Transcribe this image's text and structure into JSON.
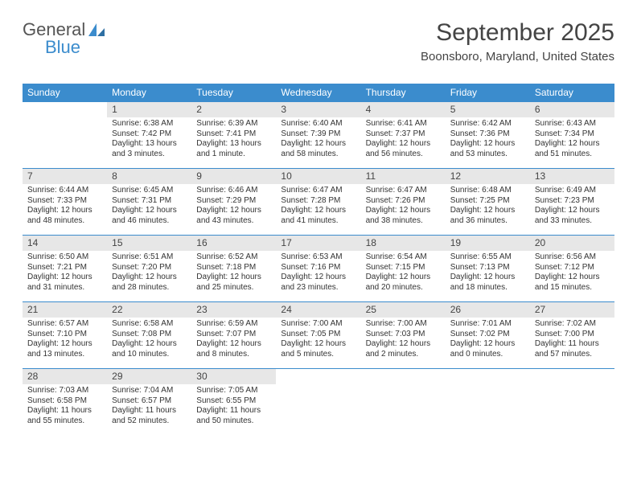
{
  "brand": {
    "part1": "General",
    "part2": "Blue",
    "grey": "#666666",
    "accent": "#3b8ccd"
  },
  "title": "September 2025",
  "location": "Boonsboro, Maryland, United States",
  "header_bg": "#3b8ccd",
  "header_fg": "#ffffff",
  "daynum_bg": "#e7e7e7",
  "rule_color": "#3b8ccd",
  "day_names": [
    "Sunday",
    "Monday",
    "Tuesday",
    "Wednesday",
    "Thursday",
    "Friday",
    "Saturday"
  ],
  "first_weekday": 1,
  "days": [
    {
      "n": 1,
      "sr": "6:38 AM",
      "ss": "7:42 PM",
      "dl": "13 hours and 3 minutes."
    },
    {
      "n": 2,
      "sr": "6:39 AM",
      "ss": "7:41 PM",
      "dl": "13 hours and 1 minute."
    },
    {
      "n": 3,
      "sr": "6:40 AM",
      "ss": "7:39 PM",
      "dl": "12 hours and 58 minutes."
    },
    {
      "n": 4,
      "sr": "6:41 AM",
      "ss": "7:37 PM",
      "dl": "12 hours and 56 minutes."
    },
    {
      "n": 5,
      "sr": "6:42 AM",
      "ss": "7:36 PM",
      "dl": "12 hours and 53 minutes."
    },
    {
      "n": 6,
      "sr": "6:43 AM",
      "ss": "7:34 PM",
      "dl": "12 hours and 51 minutes."
    },
    {
      "n": 7,
      "sr": "6:44 AM",
      "ss": "7:33 PM",
      "dl": "12 hours and 48 minutes."
    },
    {
      "n": 8,
      "sr": "6:45 AM",
      "ss": "7:31 PM",
      "dl": "12 hours and 46 minutes."
    },
    {
      "n": 9,
      "sr": "6:46 AM",
      "ss": "7:29 PM",
      "dl": "12 hours and 43 minutes."
    },
    {
      "n": 10,
      "sr": "6:47 AM",
      "ss": "7:28 PM",
      "dl": "12 hours and 41 minutes."
    },
    {
      "n": 11,
      "sr": "6:47 AM",
      "ss": "7:26 PM",
      "dl": "12 hours and 38 minutes."
    },
    {
      "n": 12,
      "sr": "6:48 AM",
      "ss": "7:25 PM",
      "dl": "12 hours and 36 minutes."
    },
    {
      "n": 13,
      "sr": "6:49 AM",
      "ss": "7:23 PM",
      "dl": "12 hours and 33 minutes."
    },
    {
      "n": 14,
      "sr": "6:50 AM",
      "ss": "7:21 PM",
      "dl": "12 hours and 31 minutes."
    },
    {
      "n": 15,
      "sr": "6:51 AM",
      "ss": "7:20 PM",
      "dl": "12 hours and 28 minutes."
    },
    {
      "n": 16,
      "sr": "6:52 AM",
      "ss": "7:18 PM",
      "dl": "12 hours and 25 minutes."
    },
    {
      "n": 17,
      "sr": "6:53 AM",
      "ss": "7:16 PM",
      "dl": "12 hours and 23 minutes."
    },
    {
      "n": 18,
      "sr": "6:54 AM",
      "ss": "7:15 PM",
      "dl": "12 hours and 20 minutes."
    },
    {
      "n": 19,
      "sr": "6:55 AM",
      "ss": "7:13 PM",
      "dl": "12 hours and 18 minutes."
    },
    {
      "n": 20,
      "sr": "6:56 AM",
      "ss": "7:12 PM",
      "dl": "12 hours and 15 minutes."
    },
    {
      "n": 21,
      "sr": "6:57 AM",
      "ss": "7:10 PM",
      "dl": "12 hours and 13 minutes."
    },
    {
      "n": 22,
      "sr": "6:58 AM",
      "ss": "7:08 PM",
      "dl": "12 hours and 10 minutes."
    },
    {
      "n": 23,
      "sr": "6:59 AM",
      "ss": "7:07 PM",
      "dl": "12 hours and 8 minutes."
    },
    {
      "n": 24,
      "sr": "7:00 AM",
      "ss": "7:05 PM",
      "dl": "12 hours and 5 minutes."
    },
    {
      "n": 25,
      "sr": "7:00 AM",
      "ss": "7:03 PM",
      "dl": "12 hours and 2 minutes."
    },
    {
      "n": 26,
      "sr": "7:01 AM",
      "ss": "7:02 PM",
      "dl": "12 hours and 0 minutes."
    },
    {
      "n": 27,
      "sr": "7:02 AM",
      "ss": "7:00 PM",
      "dl": "11 hours and 57 minutes."
    },
    {
      "n": 28,
      "sr": "7:03 AM",
      "ss": "6:58 PM",
      "dl": "11 hours and 55 minutes."
    },
    {
      "n": 29,
      "sr": "7:04 AM",
      "ss": "6:57 PM",
      "dl": "11 hours and 52 minutes."
    },
    {
      "n": 30,
      "sr": "7:05 AM",
      "ss": "6:55 PM",
      "dl": "11 hours and 50 minutes."
    }
  ],
  "labels": {
    "sunrise": "Sunrise:",
    "sunset": "Sunset:",
    "daylight": "Daylight:"
  }
}
